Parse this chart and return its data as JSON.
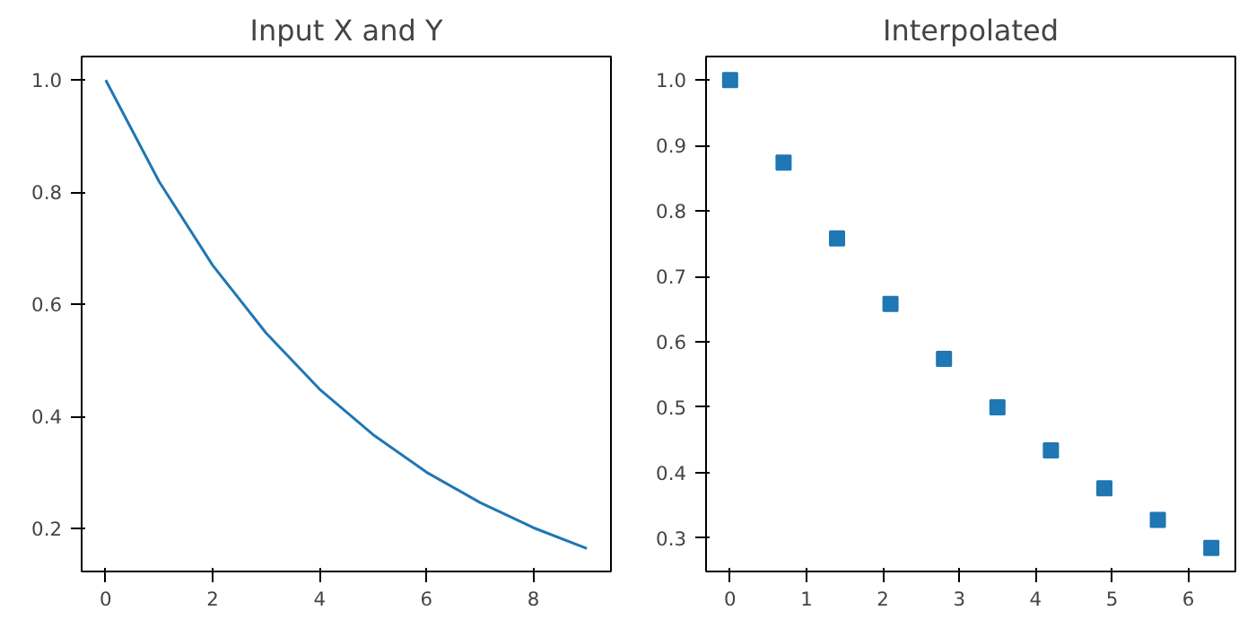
{
  "chart_data": [
    {
      "type": "line",
      "title": "Input X and Y",
      "x": [
        0,
        1,
        2,
        3,
        4,
        5,
        6,
        7,
        8,
        9
      ],
      "series": [
        {
          "color": "#1f77b4",
          "values": [
            1.0,
            0.819,
            0.67,
            0.549,
            0.449,
            0.368,
            0.301,
            0.247,
            0.202,
            0.165
          ]
        }
      ],
      "xlim": [
        -0.45,
        9.45
      ],
      "ylim": [
        0.124,
        1.042
      ],
      "xticks": [
        0,
        2,
        4,
        6,
        8
      ],
      "yticks": [
        0.2,
        0.4,
        0.6,
        0.8,
        {
          "value": 1,
          "label": "1.0"
        }
      ],
      "line_style": "solid"
    },
    {
      "type": "scatter",
      "title": "Interpolated",
      "x": [
        0,
        0.7,
        1.4,
        2.1,
        2.8,
        3.5,
        4.2,
        4.9,
        5.6,
        6.3
      ],
      "series": [
        {
          "color": "#1f77b4",
          "values": [
            1.0,
            0.874,
            0.758,
            0.658,
            0.574,
            0.5,
            0.434,
            0.376,
            0.328,
            0.285
          ]
        }
      ],
      "xlim": [
        -0.315,
        6.615
      ],
      "ylim": [
        0.249,
        1.036
      ],
      "xticks": [
        0,
        1,
        2,
        3,
        4,
        5,
        6
      ],
      "yticks": [
        0.3,
        0.4,
        0.5,
        0.6,
        0.7,
        0.8,
        0.9,
        {
          "value": 1,
          "label": "1.0"
        }
      ],
      "marker": "square"
    }
  ]
}
